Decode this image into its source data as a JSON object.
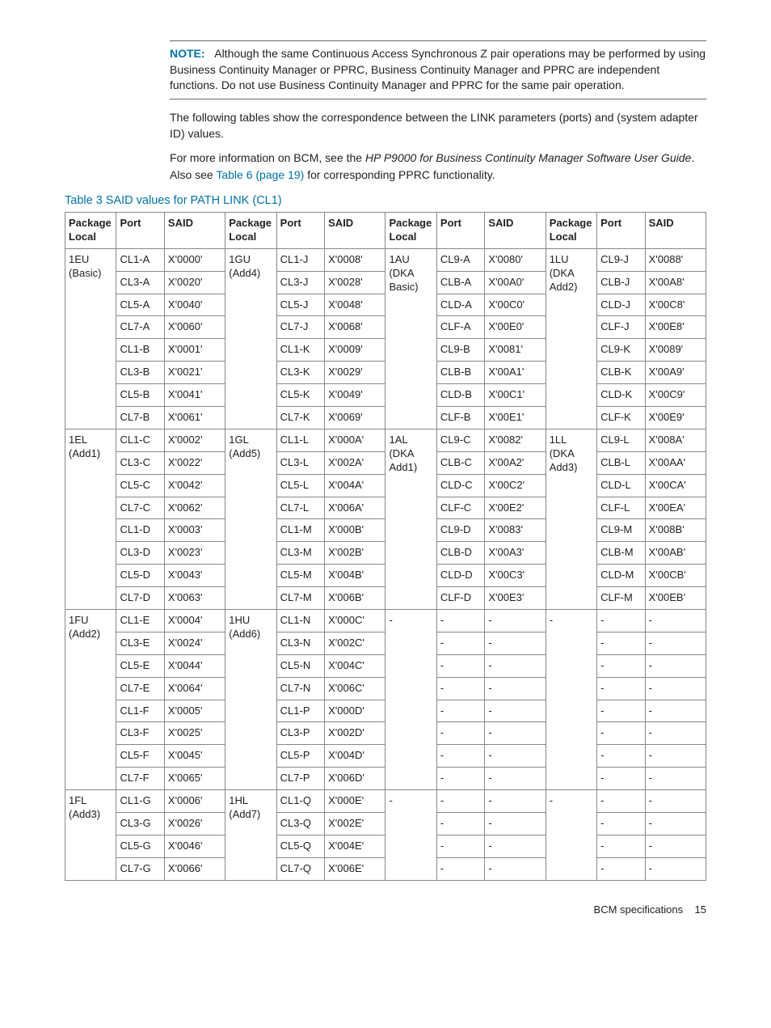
{
  "note": {
    "label": "NOTE:",
    "text": "Although the same Continuous Access Synchronous Z pair operations may be performed by using Business Continuity Manager or PPRC, Business Continuity Manager and PPRC are independent functions. Do not use Business Continuity Manager and PPRC for the same pair operation."
  },
  "para1": "The following tables show the correspondence between the LINK parameters (ports) and (system adapter ID) values.",
  "para2_a": "For more information on BCM, see the ",
  "para2_ital": "HP P9000 for Business Continuity Manager Software User Guide",
  "para2_b": ". Also see ",
  "para2_link": "Table 6 (page 19)",
  "para2_c": " for corresponding PPRC functionality.",
  "tableTitle": "Table 3 SAID values for PATH LINK (CL1)",
  "headers": {
    "pkg": "Package Local",
    "port": "Port",
    "said": "SAID"
  },
  "groups": [
    {
      "rows": 8,
      "g1": {
        "pkg1": "1EU",
        "pkg2": "(Basic)",
        "rows": [
          [
            "CL1-A",
            "X'0000'"
          ],
          [
            "CL3-A",
            "X'0020'"
          ],
          [
            "CL5-A",
            "X'0040'"
          ],
          [
            "CL7-A",
            "X'0060'"
          ],
          [
            "CL1-B",
            "X'0001'"
          ],
          [
            "CL3-B",
            "X'0021'"
          ],
          [
            "CL5-B",
            "X'0041'"
          ],
          [
            "CL7-B",
            "X'0061'"
          ]
        ]
      },
      "g2": {
        "pkg1": "1GU",
        "pkg2": "(Add4)",
        "rows": [
          [
            "CL1-J",
            "X'0008'"
          ],
          [
            "CL3-J",
            "X'0028'"
          ],
          [
            "CL5-J",
            "X'0048'"
          ],
          [
            "CL7-J",
            "X'0068'"
          ],
          [
            "CL1-K",
            "X'0009'"
          ],
          [
            "CL3-K",
            "X'0029'"
          ],
          [
            "CL5-K",
            "X'0049'"
          ],
          [
            "CL7-K",
            "X'0069'"
          ]
        ]
      },
      "g3": {
        "pkg1": "1AU",
        "pkg2": "(DKA Basic)",
        "rows": [
          [
            "CL9-A",
            "X'0080'"
          ],
          [
            "CLB-A",
            "X'00A0'"
          ],
          [
            "CLD-A",
            "X'00C0'"
          ],
          [
            "CLF-A",
            "X'00E0'"
          ],
          [
            "CL9-B",
            "X'0081'"
          ],
          [
            "CLB-B",
            "X'00A1'"
          ],
          [
            "CLD-B",
            "X'00C1'"
          ],
          [
            "CLF-B",
            "X'00E1'"
          ]
        ]
      },
      "g4": {
        "pkg1": "1LU",
        "pkg2": "(DKA Add2)",
        "rows": [
          [
            "CL9-J",
            "X'0088'"
          ],
          [
            "CLB-J",
            "X'00A8'"
          ],
          [
            "CLD-J",
            "X'00C8'"
          ],
          [
            "CLF-J",
            "X'00E8'"
          ],
          [
            "CL9-K",
            "X'0089'"
          ],
          [
            "CLB-K",
            "X'00A9'"
          ],
          [
            "CLD-K",
            "X'00C9'"
          ],
          [
            "CLF-K",
            "X'00E9'"
          ]
        ]
      }
    },
    {
      "rows": 8,
      "g1": {
        "pkg1": "1EL",
        "pkg2": "(Add1)",
        "rows": [
          [
            "CL1-C",
            "X'0002'"
          ],
          [
            "CL3-C",
            "X'0022'"
          ],
          [
            "CL5-C",
            "X'0042'"
          ],
          [
            "CL7-C",
            "X'0062'"
          ],
          [
            "CL1-D",
            "X'0003'"
          ],
          [
            "CL3-D",
            "X'0023'"
          ],
          [
            "CL5-D",
            "X'0043'"
          ],
          [
            "CL7-D",
            "X'0063'"
          ]
        ]
      },
      "g2": {
        "pkg1": "1GL",
        "pkg2": "(Add5)",
        "rows": [
          [
            "CL1-L",
            "X'000A'"
          ],
          [
            "CL3-L",
            "X'002A'"
          ],
          [
            "CL5-L",
            "X'004A'"
          ],
          [
            "CL7-L",
            "X'006A'"
          ],
          [
            "CL1-M",
            "X'000B'"
          ],
          [
            "CL3-M",
            "X'002B'"
          ],
          [
            "CL5-M",
            "X'004B'"
          ],
          [
            "CL7-M",
            "X'006B'"
          ]
        ]
      },
      "g3": {
        "pkg1": "1AL",
        "pkg2": "(DKA Add1)",
        "rows": [
          [
            "CL9-C",
            "X'0082'"
          ],
          [
            "CLB-C",
            "X'00A2'"
          ],
          [
            "CLD-C",
            "X'00C2'"
          ],
          [
            "CLF-C",
            "X'00E2'"
          ],
          [
            "CL9-D",
            "X'0083'"
          ],
          [
            "CLB-D",
            "X'00A3'"
          ],
          [
            "CLD-D",
            "X'00C3'"
          ],
          [
            "CLF-D",
            "X'00E3'"
          ]
        ]
      },
      "g4": {
        "pkg1": "1LL",
        "pkg2": "(DKA Add3)",
        "rows": [
          [
            "CL9-L",
            "X'008A'"
          ],
          [
            "CLB-L",
            "X'00AA'"
          ],
          [
            "CLD-L",
            "X'00CA'"
          ],
          [
            "CLF-L",
            "X'00EA'"
          ],
          [
            "CL9-M",
            "X'008B'"
          ],
          [
            "CLB-M",
            "X'00AB'"
          ],
          [
            "CLD-M",
            "X'00CB'"
          ],
          [
            "CLF-M",
            "X'00EB'"
          ]
        ]
      }
    },
    {
      "rows": 8,
      "g1": {
        "pkg1": "1FU",
        "pkg2": "(Add2)",
        "rows": [
          [
            "CL1-E",
            "X'0004'"
          ],
          [
            "CL3-E",
            "X'0024'"
          ],
          [
            "CL5-E",
            "X'0044'"
          ],
          [
            "CL7-E",
            "X'0064'"
          ],
          [
            "CL1-F",
            "X'0005'"
          ],
          [
            "CL3-F",
            "X'0025'"
          ],
          [
            "CL5-F",
            "X'0045'"
          ],
          [
            "CL7-F",
            "X'0065'"
          ]
        ]
      },
      "g2": {
        "pkg1": "1HU",
        "pkg2": "(Add6)",
        "rows": [
          [
            "CL1-N",
            "X'000C'"
          ],
          [
            "CL3-N",
            "X'002C'"
          ],
          [
            "CL5-N",
            "X'004C'"
          ],
          [
            "CL7-N",
            "X'006C'"
          ],
          [
            "CL1-P",
            "X'000D'"
          ],
          [
            "CL3-P",
            "X'002D'"
          ],
          [
            "CL5-P",
            "X'004D'"
          ],
          [
            "CL7-P",
            "X'006D'"
          ]
        ]
      },
      "g3": {
        "pkg1": "-",
        "pkg2": "",
        "rows": [
          [
            "-",
            "-"
          ],
          [
            "-",
            "-"
          ],
          [
            "-",
            "-"
          ],
          [
            "-",
            "-"
          ],
          [
            "-",
            "-"
          ],
          [
            "-",
            "-"
          ],
          [
            "-",
            "-"
          ],
          [
            "-",
            "-"
          ]
        ]
      },
      "g4": {
        "pkg1": "-",
        "pkg2": "",
        "rows": [
          [
            "-",
            "-"
          ],
          [
            "-",
            "-"
          ],
          [
            "-",
            "-"
          ],
          [
            "-",
            "-"
          ],
          [
            "-",
            "-"
          ],
          [
            "-",
            "-"
          ],
          [
            "-",
            "-"
          ],
          [
            "-",
            "-"
          ]
        ]
      }
    },
    {
      "rows": 4,
      "g1": {
        "pkg1": "1FL",
        "pkg2": "(Add3)",
        "rows": [
          [
            "CL1-G",
            "X'0006'"
          ],
          [
            "CL3-G",
            "X'0026'"
          ],
          [
            "CL5-G",
            "X'0046'"
          ],
          [
            "CL7-G",
            "X'0066'"
          ]
        ]
      },
      "g2": {
        "pkg1": "1HL",
        "pkg2": "(Add7)",
        "rows": [
          [
            "CL1-Q",
            "X'000E'"
          ],
          [
            "CL3-Q",
            "X'002E'"
          ],
          [
            "CL5-Q",
            "X'004E'"
          ],
          [
            "CL7-Q",
            "X'006E'"
          ]
        ]
      },
      "g3": {
        "pkg1": "-",
        "pkg2": "",
        "rows": [
          [
            "-",
            "-"
          ],
          [
            "-",
            "-"
          ],
          [
            "-",
            "-"
          ],
          [
            "-",
            "-"
          ]
        ]
      },
      "g4": {
        "pkg1": "-",
        "pkg2": "",
        "rows": [
          [
            "-",
            "-"
          ],
          [
            "-",
            "-"
          ],
          [
            "-",
            "-"
          ],
          [
            "-",
            "-"
          ]
        ]
      }
    }
  ],
  "footer": {
    "label": "BCM specifications",
    "page": "15"
  }
}
